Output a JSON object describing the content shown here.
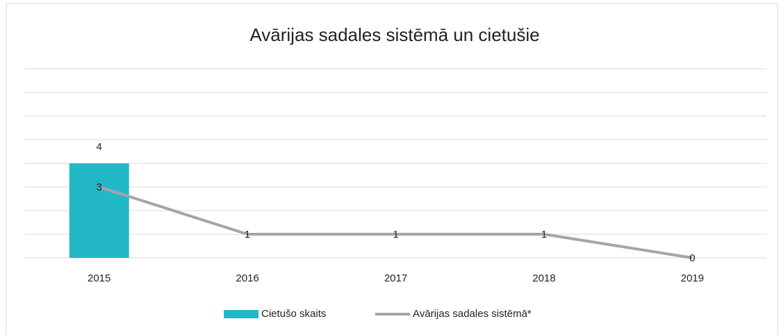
{
  "chart_data": {
    "type": "bar_line",
    "title": "Avārijas sadales sistēmā un cietušie",
    "categories": [
      "2015",
      "2016",
      "2017",
      "2018",
      "2019"
    ],
    "series": [
      {
        "name": "Cietušo skaits",
        "type": "bar",
        "color": "#22b8c5",
        "values": [
          4,
          null,
          null,
          null,
          null
        ]
      },
      {
        "name": "Avārijas sadales sistēmā*",
        "type": "line",
        "color": "#a5a5a5",
        "values": [
          3,
          1,
          1,
          1,
          0
        ]
      }
    ],
    "ylim": [
      0,
      8
    ],
    "yticks": [
      0,
      1,
      2,
      3,
      4,
      5,
      6,
      7,
      8
    ],
    "ytick_labels": false,
    "grid": true,
    "legend": "bottom"
  }
}
